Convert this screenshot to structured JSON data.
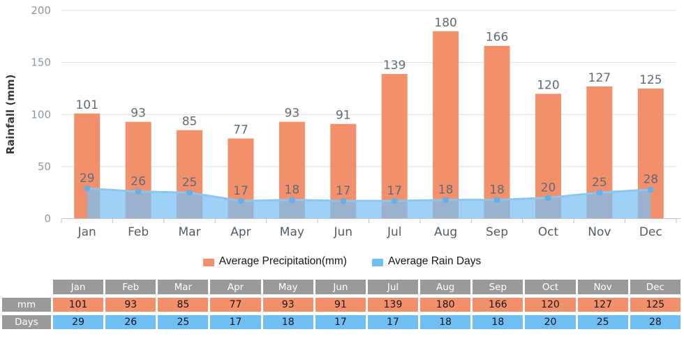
{
  "chart_data": {
    "type": "bar+line",
    "title": "",
    "categories": [
      "Jan",
      "Feb",
      "Mar",
      "Apr",
      "May",
      "Jun",
      "Jul",
      "Aug",
      "Sep",
      "Oct",
      "Nov",
      "Dec"
    ],
    "series": [
      {
        "name": "Average Precipitation(mm)",
        "type": "bar",
        "values": [
          101,
          93,
          85,
          77,
          93,
          91,
          139,
          180,
          166,
          120,
          127,
          125
        ],
        "color": "#F2906B"
      },
      {
        "name": "Average Rain Days",
        "type": "line-area",
        "values": [
          29,
          26,
          25,
          17,
          18,
          17,
          17,
          18,
          18,
          20,
          25,
          28
        ],
        "color": "#6FBEF4",
        "area_fill": "rgba(119,191,244,0.72)",
        "line_color": "#8AC6F0",
        "marker_color": "#67AEE3"
      }
    ],
    "ylabel": "Rainfall (mm)",
    "xlabel": "",
    "yticks": [
      0,
      50,
      100,
      150,
      200
    ],
    "ylim": [
      0,
      200
    ],
    "grid": true,
    "legend_position": "bottom",
    "grid_color": "#DCDCDC",
    "axis_color": "#C3C3C3",
    "ytick_color": "#8C98A4",
    "xtick_color": "#525C66",
    "value_label_color": "#5F6B76",
    "ylabel_color": "#3A3A3A"
  },
  "legend": {
    "items": [
      {
        "label": "Average Precipitation(mm)",
        "color": "#F2906B"
      },
      {
        "label": "Average Rain Days",
        "color": "#6FBEF4"
      }
    ]
  },
  "table": {
    "corner": "",
    "header_color": "#9A9A9A",
    "columns": [
      "Jan",
      "Feb",
      "Mar",
      "Apr",
      "May",
      "Jun",
      "Jul",
      "Aug",
      "Sep",
      "Oct",
      "Nov",
      "Dec"
    ],
    "rows": [
      {
        "label": "mm",
        "color": "#F2906B",
        "values": [
          101,
          93,
          85,
          77,
          93,
          91,
          139,
          180,
          166,
          120,
          127,
          125
        ]
      },
      {
        "label": "Days",
        "color": "#6FBEF4",
        "values": [
          29,
          26,
          25,
          17,
          18,
          17,
          17,
          18,
          18,
          20,
          25,
          28
        ]
      }
    ]
  }
}
